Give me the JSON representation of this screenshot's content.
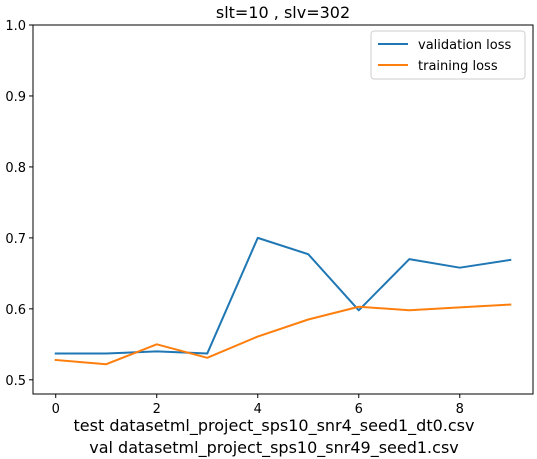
{
  "chart_data": {
    "type": "line",
    "title": "slt=10 , slv=302",
    "xlabel_lines": [
      "test datasetml_project_sps10_snr4_seed1_dt0.csv",
      "val datasetml_project_sps10_snr49_seed1.csv"
    ],
    "ylabel": "",
    "x": [
      0,
      1,
      2,
      3,
      4,
      5,
      6,
      7,
      8,
      9
    ],
    "xlim": [
      -0.45,
      9.45
    ],
    "ylim": [
      0.48,
      1.0
    ],
    "xticks": [
      0,
      2,
      4,
      6,
      8
    ],
    "yticks": [
      0.5,
      0.6,
      0.7,
      0.8,
      0.9,
      1.0
    ],
    "ytick_labels": [
      "0.5",
      "0.6",
      "0.7",
      "0.8",
      "0.9",
      "1.0"
    ],
    "grid": false,
    "legend_position": "top-right",
    "series": [
      {
        "name": "validation loss",
        "color": "#1f77b4",
        "values": [
          0.537,
          0.537,
          0.54,
          0.537,
          0.7,
          0.677,
          0.598,
          0.67,
          0.658,
          0.669
        ]
      },
      {
        "name": "training loss",
        "color": "#ff7f0e",
        "values": [
          0.528,
          0.522,
          0.55,
          0.531,
          0.561,
          0.585,
          0.603,
          0.598,
          0.602,
          0.606
        ]
      }
    ]
  }
}
